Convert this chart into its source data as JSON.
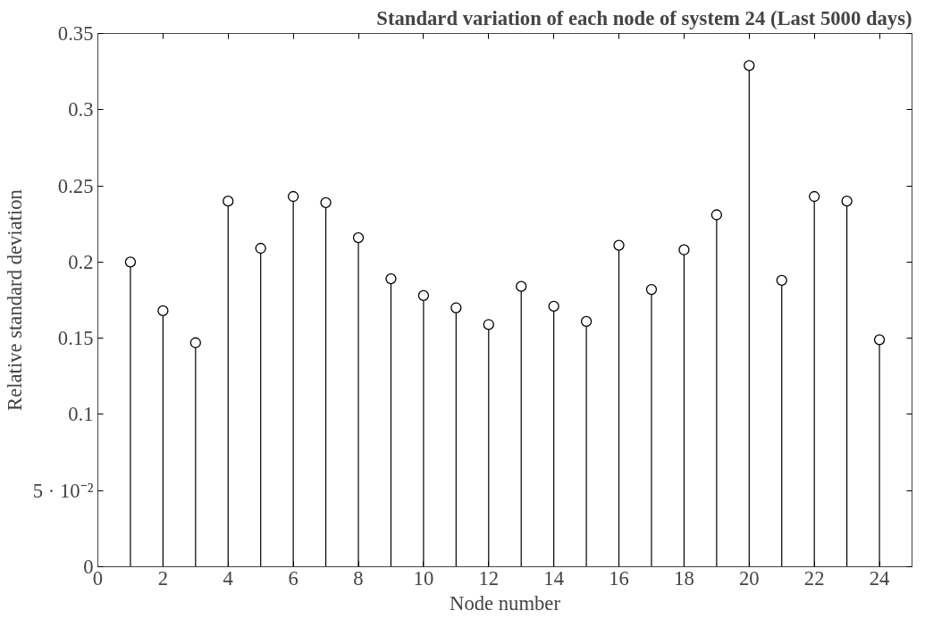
{
  "chart_data": {
    "type": "lollipop",
    "title": "Standard variation of each node of system 24 (Last 5000 days)",
    "xlabel": "Node number",
    "ylabel": "Relative standard deviation",
    "x": [
      1,
      2,
      3,
      4,
      5,
      6,
      7,
      8,
      9,
      10,
      11,
      12,
      13,
      14,
      15,
      16,
      17,
      18,
      19,
      20,
      21,
      22,
      23,
      24
    ],
    "series": [
      {
        "color": "#000000",
        "values": [
          0.2,
          0.168,
          0.147,
          0.24,
          0.209,
          0.243,
          0.239,
          0.216,
          0.189,
          0.178,
          0.17,
          0.159,
          0.184,
          0.171,
          0.161,
          0.211,
          0.182,
          0.208,
          0.231,
          0.329,
          0.188,
          0.243,
          0.24,
          0.149
        ]
      }
    ],
    "xlim": [
      0,
      25
    ],
    "xticks": [
      0,
      2,
      4,
      6,
      8,
      10,
      12,
      14,
      16,
      18,
      20,
      22,
      24
    ],
    "ylim": [
      0,
      0.35
    ],
    "yticks": [
      0,
      {
        "value": 0.05,
        "label": "5 · 10⁻²"
      },
      0.1,
      0.15,
      0.2,
      0.25,
      0.3,
      0.35
    ],
    "marker": "circle"
  }
}
